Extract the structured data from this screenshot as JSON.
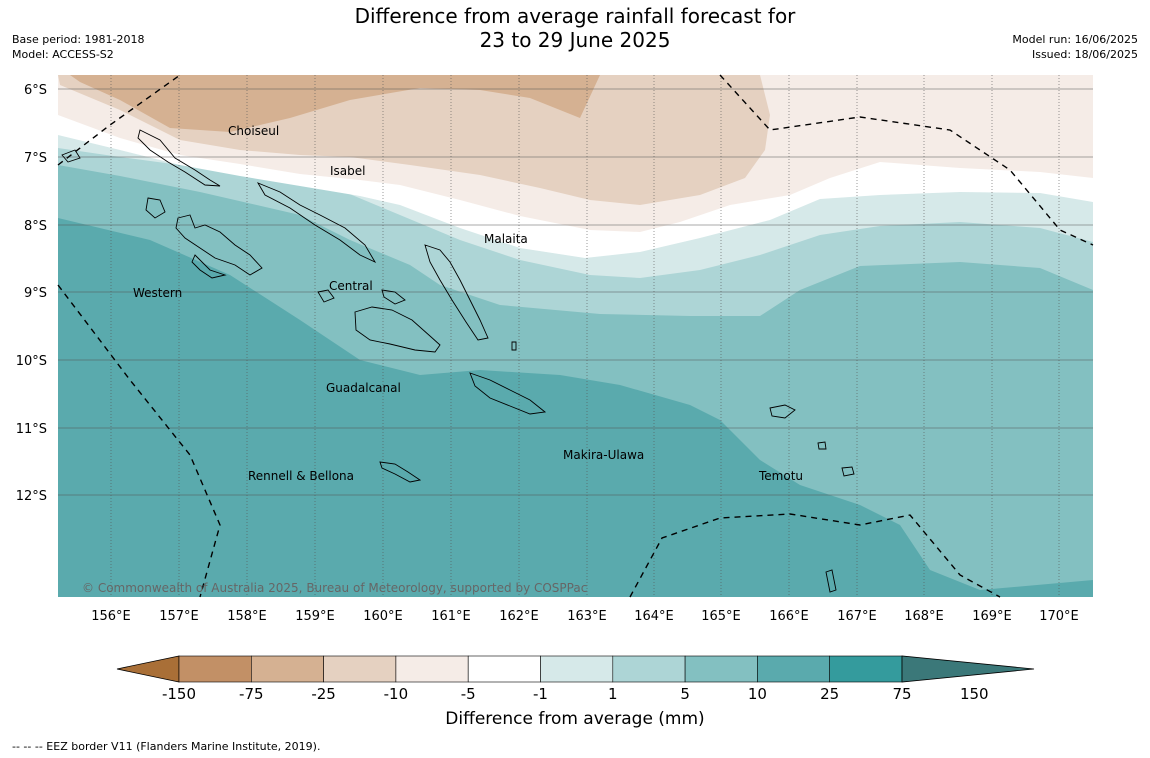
{
  "header": {
    "title_line1": "Difference from average rainfall forecast for",
    "title_line2": "23 to 29 June 2025",
    "base_period": "Base period: 1981-2018",
    "model": "Model: ACCESS-S2",
    "model_run": "Model run: 16/06/2025",
    "issued": "Issued: 18/06/2025"
  },
  "map": {
    "lon_labels": [
      "156°E",
      "157°E",
      "158°E",
      "159°E",
      "160°E",
      "161°E",
      "162°E",
      "163°E",
      "164°E",
      "165°E",
      "166°E",
      "167°E",
      "168°E",
      "169°E",
      "170°E"
    ],
    "lat_labels": [
      "6°S",
      "7°S",
      "8°S",
      "9°S",
      "10°S",
      "11°S",
      "12°S"
    ],
    "regions": [
      "Choiseul",
      "Isabel",
      "Malaita",
      "Western",
      "Central",
      "Guadalcanal",
      "Makira-Ulawa",
      "Rennell & Bellona",
      "Temotu"
    ],
    "copyright": "© Commonwealth of Australia 2025, Bureau of Meteorology, supported by COSPPac",
    "eez_style": "dashed"
  },
  "colorbar": {
    "ticks": [
      "-150",
      "-75",
      "-25",
      "-10",
      "-5",
      "-1",
      "1",
      "5",
      "10",
      "25",
      "75",
      "150"
    ],
    "colors": [
      "#a96f37",
      "#c29066",
      "#d5b192",
      "#e5d1c1",
      "#f5ece7",
      "#ffffff",
      "#d6e9e9",
      "#add5d6",
      "#83c0c1",
      "#5aaaad",
      "#349b9d",
      "#3b7879"
    ],
    "title": "Difference from average (mm)"
  },
  "footnote": "--  --  -- EEZ border V11 (Flanders Marine Institute, 2019)."
}
